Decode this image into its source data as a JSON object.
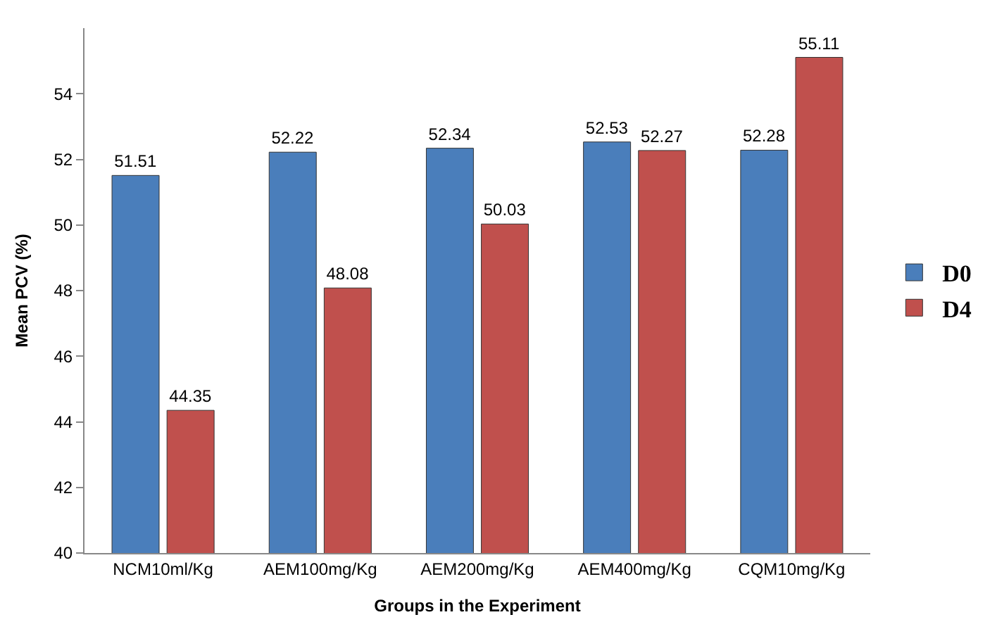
{
  "chart_data": {
    "type": "bar",
    "xlabel": "Groups in the Experiment",
    "ylabel": "Mean PCV (%)",
    "categories": [
      "NCM10ml/Kg",
      "AEM100mg/Kg",
      "AEM200mg/Kg",
      "AEM400mg/Kg",
      "CQM10mg/Kg"
    ],
    "series": [
      {
        "name": "D0",
        "color": "#4a7ebb",
        "values": [
          51.51,
          52.22,
          52.34,
          52.53,
          52.28
        ]
      },
      {
        "name": "D4",
        "color": "#c0504d",
        "values": [
          44.35,
          48.08,
          50.03,
          52.27,
          55.11
        ]
      }
    ],
    "ylim": [
      40,
      56
    ],
    "yticks": [
      40,
      42,
      44,
      46,
      48,
      50,
      52,
      54
    ],
    "data_labels": true,
    "legend": "right"
  }
}
